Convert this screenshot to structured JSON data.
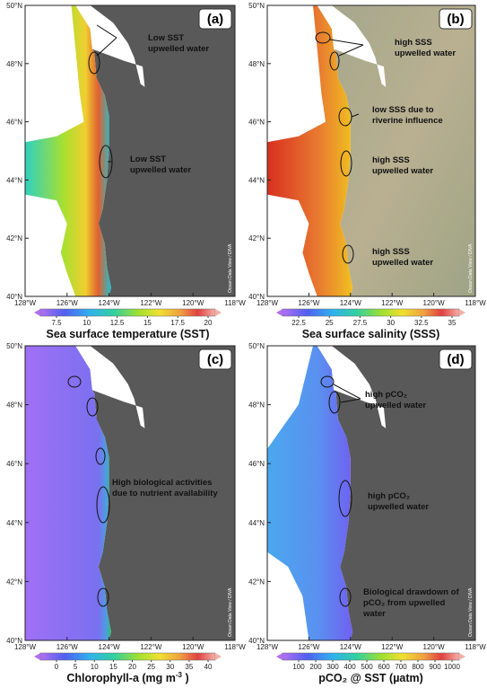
{
  "panels": [
    {
      "label": "(a)",
      "colorbar": {
        "ticks": [
          7.5,
          10,
          12.5,
          15,
          17.5,
          20
        ],
        "title": "Sea surface temperature (SST)"
      },
      "annotations": [
        [
          "Low SST",
          "upwelled water"
        ],
        [
          "Low SST",
          "upwelled water"
        ]
      ]
    },
    {
      "label": "(b)",
      "colorbar": {
        "ticks": [
          22.5,
          25,
          27.5,
          30,
          32.5,
          35
        ],
        "title": "Sea surface salinity (SSS)"
      },
      "annotations": [
        [
          "high SSS",
          "upwelled water"
        ],
        [
          "low SSS due to",
          "riverine influence"
        ],
        [
          "high SSS",
          "upwelled water"
        ],
        [
          "high SSS",
          "upwelled water"
        ]
      ]
    },
    {
      "label": "(c)",
      "colorbar": {
        "ticks": [
          0,
          5,
          10,
          15,
          20,
          25,
          30,
          35,
          40
        ],
        "title": "Chlorophyll-a (mg m",
        "title_sup": "-3",
        "title_end": " )"
      },
      "annotations": [
        [
          "High biological activities",
          "due to nutrient availability"
        ]
      ]
    },
    {
      "label": "(d)",
      "colorbar": {
        "ticks": [
          100,
          200,
          300,
          400,
          500,
          600,
          700,
          800,
          900,
          1000
        ],
        "title": "pCO₂ @ SST (µatm)"
      },
      "annotations": [
        [
          "high pCO₂",
          "upwelled water"
        ],
        [
          "high pCO₂",
          "upwelled water"
        ],
        [
          "Biological drawdown of",
          "pCO₂ from upwelled",
          "water"
        ]
      ]
    }
  ],
  "lat_labels": [
    "50°N",
    "48°N",
    "46°N",
    "44°N",
    "42°N",
    "40°N"
  ],
  "lon_labels": [
    "128°W",
    "126°W",
    "124°W",
    "122°W",
    "120°W",
    "118°W"
  ],
  "credit": "Ocean Data View / DIVA"
}
